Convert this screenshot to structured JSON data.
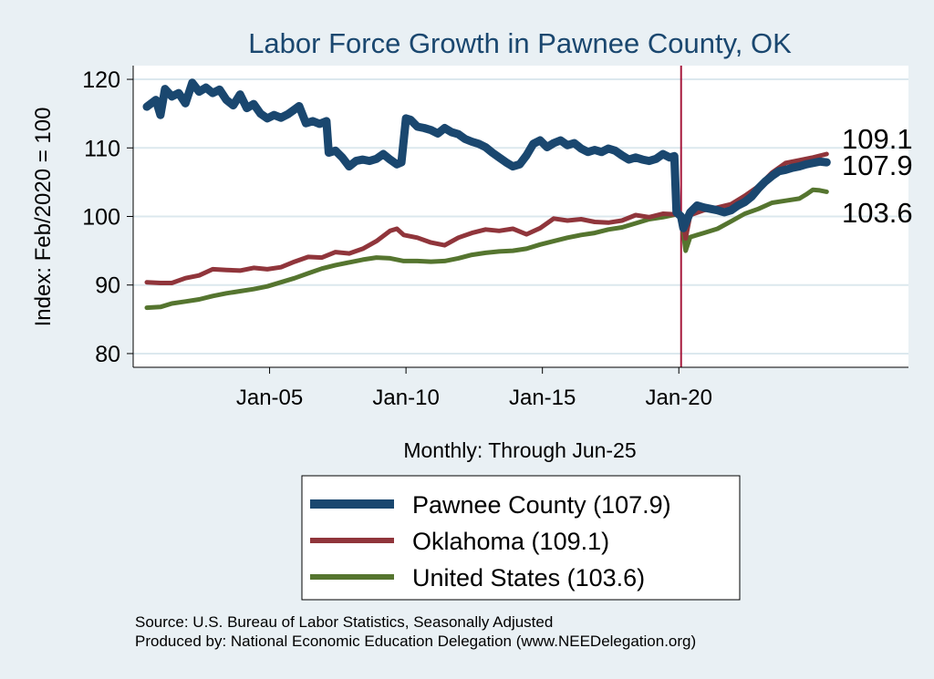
{
  "chart_data": {
    "type": "line",
    "title": "Labor Force Growth in Pawnee  County, OK",
    "ylabel": "Index: Feb/2020 = 100",
    "xlabel": "Monthly: Through Jun-25",
    "ylim": [
      78,
      122
    ],
    "yticks": [
      80,
      90,
      100,
      110,
      120
    ],
    "xlim": [
      "2000-01",
      "2028-06"
    ],
    "xticks": [
      {
        "date": "2005-01",
        "label": "Jan-05"
      },
      {
        "date": "2010-01",
        "label": "Jan-10"
      },
      {
        "date": "2015-01",
        "label": "Jan-15"
      },
      {
        "date": "2020-01",
        "label": "Jan-20"
      }
    ],
    "reference_line": {
      "date": "2020-02",
      "color": "#a6193c"
    },
    "grid": true,
    "legend_position": "bottom",
    "series": [
      {
        "name": "Pawnee  County",
        "legend": "Pawnee  County (107.9)",
        "color": "#1a476f",
        "end_label": "107.9",
        "points": [
          [
            "2000-07",
            116.0
          ],
          [
            "2000-11",
            117.0
          ],
          [
            "2001-01",
            114.8
          ],
          [
            "2001-03",
            118.6
          ],
          [
            "2001-06",
            117.5
          ],
          [
            "2001-09",
            118.0
          ],
          [
            "2001-12",
            116.5
          ],
          [
            "2002-03",
            119.5
          ],
          [
            "2002-06",
            118.2
          ],
          [
            "2002-09",
            118.8
          ],
          [
            "2002-12",
            118.0
          ],
          [
            "2003-03",
            118.5
          ],
          [
            "2003-06",
            117.0
          ],
          [
            "2003-09",
            116.2
          ],
          [
            "2003-12",
            117.8
          ],
          [
            "2004-03",
            115.8
          ],
          [
            "2004-06",
            116.4
          ],
          [
            "2004-09",
            115.0
          ],
          [
            "2004-12",
            114.3
          ],
          [
            "2005-03",
            114.8
          ],
          [
            "2005-06",
            114.4
          ],
          [
            "2005-09",
            114.9
          ],
          [
            "2005-12",
            115.6
          ],
          [
            "2006-02",
            116.1
          ],
          [
            "2006-05",
            113.6
          ],
          [
            "2006-08",
            113.9
          ],
          [
            "2006-11",
            113.5
          ],
          [
            "2007-02",
            113.9
          ],
          [
            "2007-03",
            109.3
          ],
          [
            "2007-06",
            109.6
          ],
          [
            "2007-09",
            108.6
          ],
          [
            "2007-12",
            107.3
          ],
          [
            "2008-03",
            108.1
          ],
          [
            "2008-06",
            108.3
          ],
          [
            "2008-09",
            108.1
          ],
          [
            "2008-12",
            108.4
          ],
          [
            "2009-03",
            109.1
          ],
          [
            "2009-06",
            108.3
          ],
          [
            "2009-09",
            107.6
          ],
          [
            "2009-11",
            107.9
          ],
          [
            "2010-01",
            114.3
          ],
          [
            "2010-03",
            114.1
          ],
          [
            "2010-06",
            113.1
          ],
          [
            "2010-09",
            112.9
          ],
          [
            "2010-12",
            112.6
          ],
          [
            "2011-03",
            112.1
          ],
          [
            "2011-06",
            112.9
          ],
          [
            "2011-09",
            112.3
          ],
          [
            "2011-12",
            112.0
          ],
          [
            "2012-03",
            111.3
          ],
          [
            "2012-06",
            110.9
          ],
          [
            "2012-09",
            110.6
          ],
          [
            "2012-12",
            110.1
          ],
          [
            "2013-03",
            109.3
          ],
          [
            "2013-06",
            108.6
          ],
          [
            "2013-09",
            107.9
          ],
          [
            "2013-12",
            107.3
          ],
          [
            "2014-03",
            107.6
          ],
          [
            "2014-06",
            108.9
          ],
          [
            "2014-09",
            110.6
          ],
          [
            "2014-12",
            111.1
          ],
          [
            "2015-03",
            110.1
          ],
          [
            "2015-06",
            110.7
          ],
          [
            "2015-09",
            111.1
          ],
          [
            "2015-12",
            110.4
          ],
          [
            "2016-03",
            110.7
          ],
          [
            "2016-06",
            109.9
          ],
          [
            "2016-09",
            109.4
          ],
          [
            "2016-12",
            109.7
          ],
          [
            "2017-03",
            109.4
          ],
          [
            "2017-06",
            109.9
          ],
          [
            "2017-09",
            109.6
          ],
          [
            "2017-12",
            108.9
          ],
          [
            "2018-03",
            108.3
          ],
          [
            "2018-06",
            108.6
          ],
          [
            "2018-09",
            108.3
          ],
          [
            "2018-12",
            108.1
          ],
          [
            "2019-03",
            108.4
          ],
          [
            "2019-06",
            109.1
          ],
          [
            "2019-09",
            108.6
          ],
          [
            "2019-11",
            108.8
          ],
          [
            "2019-12",
            100.6
          ],
          [
            "2020-02",
            100.0
          ],
          [
            "2020-03",
            98.3
          ],
          [
            "2020-06",
            100.6
          ],
          [
            "2020-09",
            101.6
          ],
          [
            "2020-12",
            101.3
          ],
          [
            "2021-03",
            101.1
          ],
          [
            "2021-06",
            100.9
          ],
          [
            "2021-09",
            100.6
          ],
          [
            "2021-12",
            100.9
          ],
          [
            "2022-03",
            101.6
          ],
          [
            "2022-06",
            102.1
          ],
          [
            "2022-09",
            102.9
          ],
          [
            "2022-12",
            104.1
          ],
          [
            "2023-03",
            105.1
          ],
          [
            "2023-06",
            105.9
          ],
          [
            "2023-09",
            106.6
          ],
          [
            "2023-12",
            106.8
          ],
          [
            "2024-03",
            107.1
          ],
          [
            "2024-06",
            107.3
          ],
          [
            "2024-09",
            107.6
          ],
          [
            "2024-12",
            107.8
          ],
          [
            "2025-03",
            108.0
          ],
          [
            "2025-06",
            107.9
          ]
        ]
      },
      {
        "name": "Oklahoma",
        "legend": "Oklahoma (109.1)",
        "color": "#90353b",
        "end_label": "109.1",
        "points": [
          [
            "2000-07",
            90.4
          ],
          [
            "2001-01",
            90.3
          ],
          [
            "2001-06",
            90.3
          ],
          [
            "2001-12",
            91.0
          ],
          [
            "2002-06",
            91.4
          ],
          [
            "2002-12",
            92.3
          ],
          [
            "2003-06",
            92.2
          ],
          [
            "2003-12",
            92.1
          ],
          [
            "2004-06",
            92.5
          ],
          [
            "2004-12",
            92.3
          ],
          [
            "2005-06",
            92.6
          ],
          [
            "2005-12",
            93.4
          ],
          [
            "2006-06",
            94.1
          ],
          [
            "2006-12",
            94.0
          ],
          [
            "2007-06",
            94.8
          ],
          [
            "2007-12",
            94.6
          ],
          [
            "2008-06",
            95.3
          ],
          [
            "2008-12",
            96.4
          ],
          [
            "2009-06",
            97.9
          ],
          [
            "2009-09",
            98.2
          ],
          [
            "2009-12",
            97.3
          ],
          [
            "2010-06",
            96.9
          ],
          [
            "2010-12",
            96.2
          ],
          [
            "2011-06",
            95.8
          ],
          [
            "2011-12",
            96.9
          ],
          [
            "2012-06",
            97.6
          ],
          [
            "2012-12",
            98.1
          ],
          [
            "2013-06",
            97.9
          ],
          [
            "2013-12",
            98.2
          ],
          [
            "2014-06",
            97.4
          ],
          [
            "2014-12",
            98.3
          ],
          [
            "2015-06",
            99.7
          ],
          [
            "2015-12",
            99.4
          ],
          [
            "2016-06",
            99.6
          ],
          [
            "2016-12",
            99.2
          ],
          [
            "2017-06",
            99.1
          ],
          [
            "2017-12",
            99.4
          ],
          [
            "2018-06",
            100.2
          ],
          [
            "2018-12",
            99.9
          ],
          [
            "2019-06",
            100.4
          ],
          [
            "2019-12",
            100.3
          ],
          [
            "2020-02",
            100.0
          ],
          [
            "2020-04",
            96.8
          ],
          [
            "2020-06",
            100.2
          ],
          [
            "2020-12",
            100.9
          ],
          [
            "2021-06",
            101.3
          ],
          [
            "2021-12",
            101.8
          ],
          [
            "2022-06",
            103.0
          ],
          [
            "2022-12",
            104.4
          ],
          [
            "2023-06",
            106.4
          ],
          [
            "2023-12",
            107.8
          ],
          [
            "2024-06",
            108.2
          ],
          [
            "2024-12",
            108.6
          ],
          [
            "2025-06",
            109.1
          ]
        ]
      },
      {
        "name": "United States",
        "legend": "United States (103.6)",
        "color": "#55752f",
        "end_label": "103.6",
        "points": [
          [
            "2000-07",
            86.7
          ],
          [
            "2001-01",
            86.8
          ],
          [
            "2001-06",
            87.3
          ],
          [
            "2001-12",
            87.6
          ],
          [
            "2002-06",
            87.9
          ],
          [
            "2002-12",
            88.4
          ],
          [
            "2003-06",
            88.8
          ],
          [
            "2003-12",
            89.1
          ],
          [
            "2004-06",
            89.4
          ],
          [
            "2004-12",
            89.8
          ],
          [
            "2005-06",
            90.4
          ],
          [
            "2005-12",
            91.0
          ],
          [
            "2006-06",
            91.7
          ],
          [
            "2006-12",
            92.4
          ],
          [
            "2007-06",
            92.9
          ],
          [
            "2007-12",
            93.3
          ],
          [
            "2008-06",
            93.7
          ],
          [
            "2008-12",
            94.0
          ],
          [
            "2009-06",
            93.9
          ],
          [
            "2009-12",
            93.5
          ],
          [
            "2010-06",
            93.5
          ],
          [
            "2010-12",
            93.4
          ],
          [
            "2011-06",
            93.5
          ],
          [
            "2011-12",
            93.9
          ],
          [
            "2012-06",
            94.4
          ],
          [
            "2012-12",
            94.7
          ],
          [
            "2013-06",
            94.9
          ],
          [
            "2013-12",
            95.0
          ],
          [
            "2014-06",
            95.3
          ],
          [
            "2014-12",
            95.9
          ],
          [
            "2015-06",
            96.4
          ],
          [
            "2015-12",
            96.9
          ],
          [
            "2016-06",
            97.3
          ],
          [
            "2016-12",
            97.6
          ],
          [
            "2017-06",
            98.1
          ],
          [
            "2017-12",
            98.4
          ],
          [
            "2018-06",
            99.0
          ],
          [
            "2018-12",
            99.6
          ],
          [
            "2019-06",
            99.9
          ],
          [
            "2019-12",
            100.3
          ],
          [
            "2020-02",
            100.0
          ],
          [
            "2020-04",
            95.0
          ],
          [
            "2020-06",
            97.0
          ],
          [
            "2020-12",
            97.6
          ],
          [
            "2021-06",
            98.2
          ],
          [
            "2021-12",
            99.3
          ],
          [
            "2022-06",
            100.4
          ],
          [
            "2022-12",
            101.1
          ],
          [
            "2023-06",
            102.0
          ],
          [
            "2023-12",
            102.3
          ],
          [
            "2024-06",
            102.6
          ],
          [
            "2024-09",
            103.2
          ],
          [
            "2024-12",
            103.9
          ],
          [
            "2025-03",
            103.8
          ],
          [
            "2025-06",
            103.6
          ]
        ]
      }
    ]
  },
  "footer": {
    "source": "Source: U.S. Bureau of Labor Statistics, Seasonally Adjusted",
    "producer": "Produced by: National Economic Education Delegation (www.NEEDelegation.org)"
  },
  "colors": {
    "background": "#e9f0f4",
    "plot_background": "#ffffff",
    "title": "#1a476f",
    "grid": "#dce8ee"
  }
}
